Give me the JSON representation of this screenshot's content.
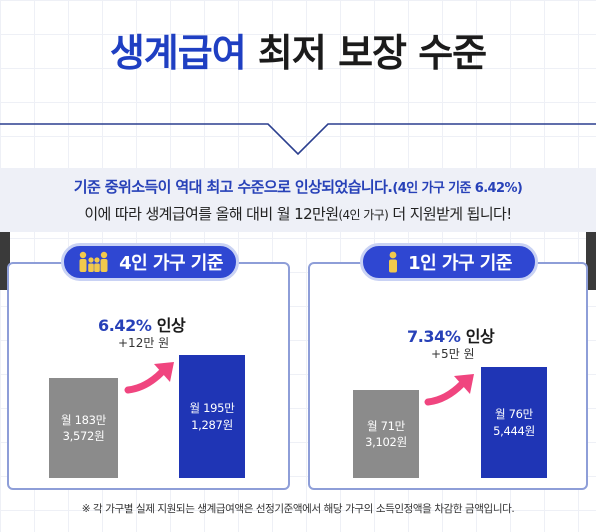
{
  "header": {
    "title_highlight": "생계급여",
    "title_rest": "최저 보장 수준"
  },
  "intro": {
    "line1_main": "기준 중위소득이 역대 최고 수준으로 인상되었습니다.",
    "line1_note": "(4인 가구 기준 6.42%)",
    "line2_a": "이에 따라 생계급여를 올해 대비 월 12만원",
    "line2_small": "(4인 가구)",
    "line2_b": " 더 지원받게 됩니다!"
  },
  "panels": [
    {
      "label": "4인 가구 기준",
      "icon": "family-icon",
      "increase_pct": "6.42%",
      "increase_word": "인상",
      "increase_amount": "+12만 원",
      "before": {
        "line1": "월 183만",
        "line2": "3,572원"
      },
      "after": {
        "line1": "월 195만",
        "line2": "1,287원"
      }
    },
    {
      "label": "1인 가구 기준",
      "icon": "person-icon",
      "increase_pct": "7.34%",
      "increase_word": "인상",
      "increase_amount": "+5만 원",
      "before": {
        "line1": "월 71만",
        "line2": "3,102원"
      },
      "after": {
        "line1": "월 76만",
        "line2": "5,444원"
      }
    }
  ],
  "footnote": "※ 각 가구별 실제 지원되는 생계급여액은 선정기준액에서 해당 가구의 소득인정액을 차감한 금액입니다.",
  "colors": {
    "accent_blue": "#1f3fc2",
    "bar_blue": "#1f35b5",
    "bar_gray": "#8b8b8b",
    "arrow_pink": "#f0457f"
  }
}
